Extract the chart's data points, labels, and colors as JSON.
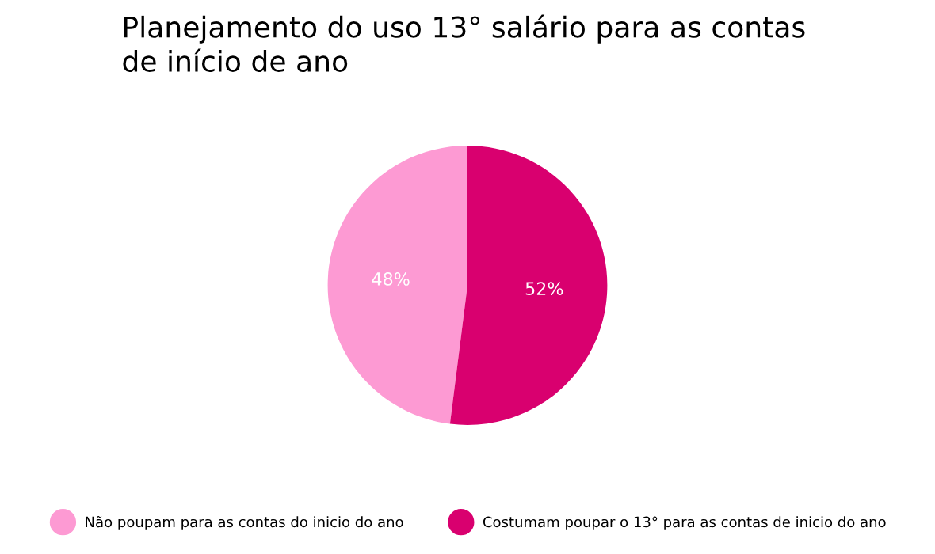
{
  "chart_data": {
    "type": "pie",
    "title": "Planejamento do uso 13° salário para as contas\nde início de ano",
    "categories": [
      "Não poupam para as contas do inicio do ano",
      "Costumam poupar o 13° para as contas de inicio do ano"
    ],
    "values": [
      48,
      52
    ],
    "colors": [
      "#fd9ad3",
      "#d9006f"
    ],
    "value_labels": [
      "48%",
      "52%"
    ],
    "legend": "bottom"
  }
}
